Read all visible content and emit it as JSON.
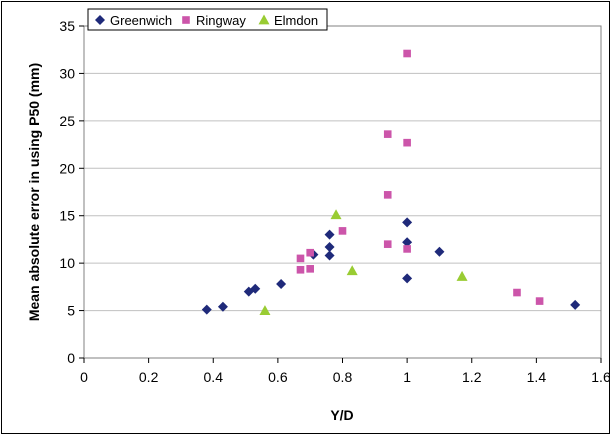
{
  "chart_data": {
    "type": "scatter",
    "title": "",
    "xlabel": "Y/D",
    "ylabel": "Mean absolute error in using P50 (mm)",
    "xlim": [
      0,
      1.6
    ],
    "ylim": [
      0,
      35
    ],
    "x_ticks": [
      "0",
      "0.2",
      "0.4",
      "0.6",
      "0.8",
      "1",
      "1.2",
      "1.4",
      "1.6"
    ],
    "y_ticks": [
      "0",
      "5",
      "10",
      "15",
      "20",
      "25",
      "30",
      "35"
    ],
    "grid": "horizontal",
    "legend_position": "top-left",
    "series": [
      {
        "name": "Greenwich",
        "marker": "diamond",
        "color": "#1f2a7a",
        "points": [
          [
            0.38,
            5.1
          ],
          [
            0.43,
            5.4
          ],
          [
            0.51,
            7.0
          ],
          [
            0.53,
            7.3
          ],
          [
            0.61,
            7.8
          ],
          [
            0.71,
            10.9
          ],
          [
            0.76,
            10.8
          ],
          [
            0.76,
            11.7
          ],
          [
            0.76,
            13.0
          ],
          [
            1.0,
            8.4
          ],
          [
            1.0,
            12.2
          ],
          [
            1.0,
            14.3
          ],
          [
            1.1,
            11.2
          ],
          [
            1.52,
            5.6
          ]
        ]
      },
      {
        "name": "Ringway",
        "marker": "square",
        "color": "#cc55aa",
        "points": [
          [
            0.67,
            9.3
          ],
          [
            0.67,
            10.5
          ],
          [
            0.7,
            9.4
          ],
          [
            0.7,
            11.1
          ],
          [
            0.8,
            13.4
          ],
          [
            0.94,
            12.0
          ],
          [
            0.94,
            17.2
          ],
          [
            0.94,
            23.6
          ],
          [
            1.0,
            11.5
          ],
          [
            1.0,
            22.7
          ],
          [
            1.0,
            32.1
          ],
          [
            1.34,
            6.9
          ],
          [
            1.41,
            6.0
          ]
        ]
      },
      {
        "name": "Elmdon",
        "marker": "triangle",
        "color": "#99cc33",
        "points": [
          [
            0.56,
            5.0
          ],
          [
            0.78,
            15.1
          ],
          [
            0.83,
            9.2
          ],
          [
            1.17,
            8.6
          ]
        ]
      }
    ]
  }
}
